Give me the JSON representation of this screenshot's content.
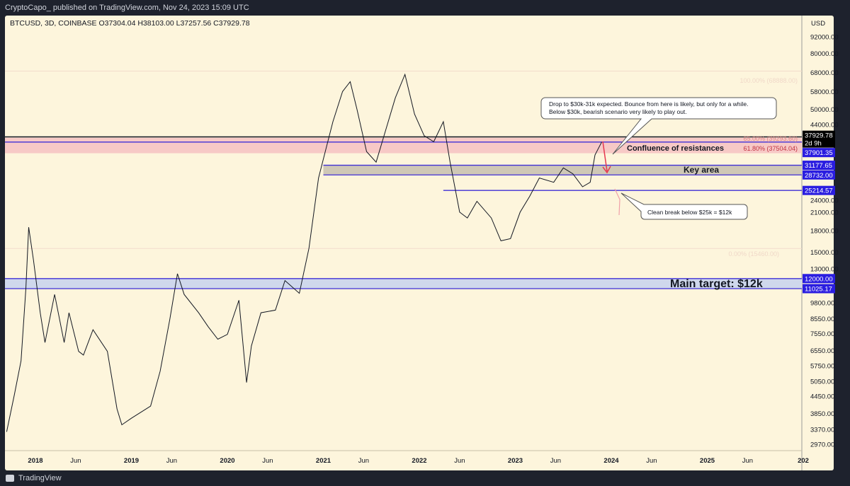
{
  "header": {
    "publisher": "CryptoCapo_ published on TradingView.com, Nov 24, 2023 15:09 UTC"
  },
  "footer": {
    "brand": "TradingView"
  },
  "colors": {
    "bg": "#fdf5dc",
    "line": "#131722",
    "level": "#3f2fd6",
    "label_bg": "#2a1de0",
    "resist": "#f7c9c6",
    "key": "#cfc8b6",
    "target": "#cfd8ec",
    "arrow": "#e53950"
  },
  "chart_data": {
    "type": "line",
    "symbol_line": "BTCUSD, 3D, COINBASE  O37304.04  H38103.00  L37257.56  C37929.78",
    "currency": "USD",
    "scale": "log",
    "ylim": [
      2700,
      110000
    ],
    "xlim": [
      2017.65,
      2026.0
    ],
    "y_ticks": [
      "92000.00",
      "80000.00",
      "68000.00",
      "58000.00",
      "50000.00",
      "44000.00",
      "24000.00",
      "21000.00",
      "18000.00",
      "15000.00",
      "13000.00",
      "9800.00",
      "8550.00",
      "7550.00",
      "6550.00",
      "5750.00",
      "5050.00",
      "4450.00",
      "3850.00",
      "3370.00",
      "2970.00"
    ],
    "x_ticks": [
      [
        "2018",
        2018
      ],
      [
        "Jun",
        2018.42
      ],
      [
        "2019",
        2019
      ],
      [
        "Jun",
        2019.42
      ],
      [
        "2020",
        2020
      ],
      [
        "Jun",
        2020.42
      ],
      [
        "2021",
        2021
      ],
      [
        "Jun",
        2021.42
      ],
      [
        "2022",
        2022
      ],
      [
        "Jun",
        2022.42
      ],
      [
        "2023",
        2023
      ],
      [
        "Jun",
        2023.42
      ],
      [
        "2024",
        2024
      ],
      [
        "Jun",
        2024.42
      ],
      [
        "2025",
        2025
      ],
      [
        "Jun",
        2025.42
      ],
      [
        "202",
        2026
      ]
    ],
    "series": [
      {
        "name": "BTCUSD",
        "x": [
          2017.7,
          2017.78,
          2017.85,
          2017.9,
          2017.93,
          2017.98,
          2018.05,
          2018.1,
          2018.2,
          2018.3,
          2018.35,
          2018.45,
          2018.5,
          2018.6,
          2018.75,
          2018.85,
          2018.9,
          2019.0,
          2019.2,
          2019.3,
          2019.4,
          2019.48,
          2019.55,
          2019.7,
          2019.8,
          2019.9,
          2020.0,
          2020.12,
          2020.2,
          2020.25,
          2020.35,
          2020.5,
          2020.6,
          2020.75,
          2020.85,
          2020.95,
          2021.02,
          2021.1,
          2021.2,
          2021.28,
          2021.35,
          2021.45,
          2021.55,
          2021.65,
          2021.75,
          2021.85,
          2021.95,
          2022.05,
          2022.15,
          2022.25,
          2022.32,
          2022.42,
          2022.5,
          2022.6,
          2022.75,
          2022.85,
          2022.95,
          2023.05,
          2023.15,
          2023.25,
          2023.4,
          2023.5,
          2023.6,
          2023.7,
          2023.78,
          2023.83,
          2023.9
        ],
        "values": [
          3300,
          4500,
          6000,
          11000,
          18500,
          14000,
          9000,
          7000,
          10500,
          7000,
          9000,
          6500,
          6300,
          7800,
          6500,
          4000,
          3500,
          3700,
          4100,
          5500,
          8500,
          12500,
          10500,
          9000,
          8000,
          7200,
          7500,
          10000,
          5000,
          6800,
          9000,
          9200,
          11800,
          10600,
          15500,
          28000,
          35000,
          45000,
          58000,
          63000,
          50000,
          35000,
          32000,
          42000,
          55000,
          67000,
          48000,
          40000,
          38000,
          45000,
          32000,
          21000,
          20000,
          23000,
          20000,
          16500,
          16800,
          21000,
          24000,
          28000,
          27000,
          30500,
          29000,
          26000,
          27000,
          34000,
          37929.78
        ]
      }
    ],
    "levels": [
      {
        "label": "37901.35",
        "price": 37901.35
      },
      {
        "label": "31177.65",
        "price": 31177.65
      },
      {
        "label": "28732.00",
        "price": 28732.0
      },
      {
        "label": "25214.57",
        "price": 25214.57
      },
      {
        "label": "12000.00",
        "price": 12000.0
      },
      {
        "label": "11025.17",
        "price": 11025.17
      }
    ],
    "last_price": {
      "label": "37929.78",
      "countdown": "2d 9h"
    },
    "fib": {
      "top": "100.00% (68888.00)",
      "mid1": "65.00% (39293.60)",
      "mid2": "61.80% (37504.04)",
      "bottom": "0.00% (15460.00)"
    },
    "annotations": {
      "callout1": [
        "Drop to $30k-31k expected. Bounce from here is likely, but only for a while.",
        "Below $30k, bearish scenario very likely to play out."
      ],
      "callout2": "Clean break below $25k = $12k",
      "confluence": "Confluence of resistances",
      "key_area": "Key area",
      "main_target": "Main target: $12k"
    }
  }
}
